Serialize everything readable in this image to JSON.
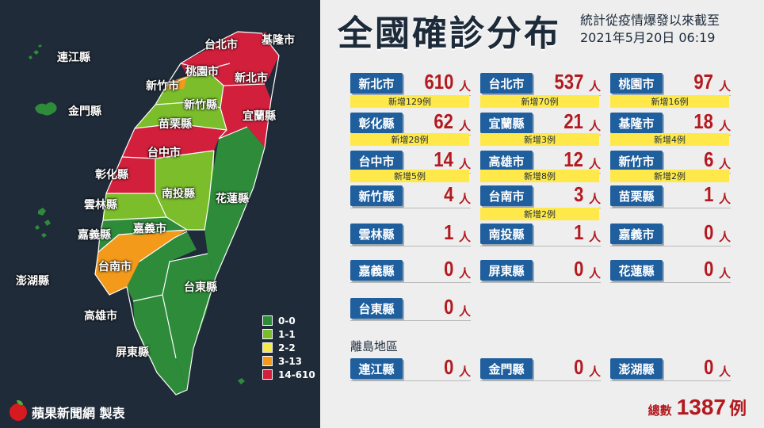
{
  "title": "全國確診分布",
  "subtitle_line1": "統計從疫情爆發以來截至",
  "subtitle_line2": "2021年5月20日 06:19",
  "unit": "人",
  "colors": {
    "level_0": "#2e8b3a",
    "level_1": "#7bbd2b",
    "level_2": "#f5e94a",
    "level_3": "#f39a1a",
    "level_4": "#d21f3c",
    "tag_bg": "#1f5f9e",
    "new_bar": "#ffe94a",
    "count_red": "#b3191f"
  },
  "map_labels": {
    "lianjiang": "連江縣",
    "kinmen": "金門縣",
    "penghu": "澎湖縣",
    "taipei": "台北市",
    "keelung": "基隆市",
    "taoyuan": "桃園市",
    "new_taipei": "新北市",
    "hsinchu_city": "新竹市",
    "hsinchu_county": "新竹縣",
    "yilan": "宜蘭縣",
    "miaoli": "苗栗縣",
    "taichung": "台中市",
    "changhua": "彰化縣",
    "nantou": "南投縣",
    "hualien": "花蓮縣",
    "yunlin": "雲林縣",
    "chiayi_county": "嘉義縣",
    "chiayi_city": "嘉義市",
    "tainan": "台南市",
    "taitung": "台東縣",
    "kaohsiung": "高雄市",
    "pingtung": "屏東縣"
  },
  "legend": [
    {
      "label": "0-0",
      "color": "#2e8b3a"
    },
    {
      "label": "1-1",
      "color": "#7bbd2b"
    },
    {
      "label": "2-2",
      "color": "#f5e94a"
    },
    {
      "label": "3-13",
      "color": "#f39a1a"
    },
    {
      "label": "14-610",
      "color": "#d21f3c"
    }
  ],
  "brand": "蘋果新聞網 製表",
  "cards": [
    {
      "name": "新北市",
      "count": "610",
      "new": "新增129例"
    },
    {
      "name": "台北市",
      "count": "537",
      "new": "新增70例"
    },
    {
      "name": "桃園市",
      "count": "97",
      "new": "新增16例"
    },
    {
      "name": "彰化縣",
      "count": "62",
      "new": "新增28例"
    },
    {
      "name": "宜蘭縣",
      "count": "21",
      "new": "新增3例"
    },
    {
      "name": "基隆市",
      "count": "18",
      "new": "新增4例"
    },
    {
      "name": "台中市",
      "count": "14",
      "new": "新增5例"
    },
    {
      "name": "高雄市",
      "count": "12",
      "new": "新增8例"
    },
    {
      "name": "新竹市",
      "count": "6",
      "new": "新增2例"
    },
    {
      "name": "新竹縣",
      "count": "4",
      "new": ""
    },
    {
      "name": "台南市",
      "count": "3",
      "new": "新增2例"
    },
    {
      "name": "苗栗縣",
      "count": "1",
      "new": ""
    },
    {
      "name": "雲林縣",
      "count": "1",
      "new": ""
    },
    {
      "name": "南投縣",
      "count": "1",
      "new": ""
    },
    {
      "name": "嘉義市",
      "count": "0",
      "new": ""
    },
    {
      "name": "嘉義縣",
      "count": "0",
      "new": ""
    },
    {
      "name": "屏東縣",
      "count": "0",
      "new": ""
    },
    {
      "name": "花蓮縣",
      "count": "0",
      "new": ""
    },
    {
      "name": "台東縣",
      "count": "0",
      "new": ""
    }
  ],
  "island_header": "離島地區",
  "island_cards": [
    {
      "name": "連江縣",
      "count": "0"
    },
    {
      "name": "金門縣",
      "count": "0"
    },
    {
      "name": "澎湖縣",
      "count": "0"
    }
  ],
  "total_label": "總數",
  "total_value": "1387",
  "total_unit": "例"
}
